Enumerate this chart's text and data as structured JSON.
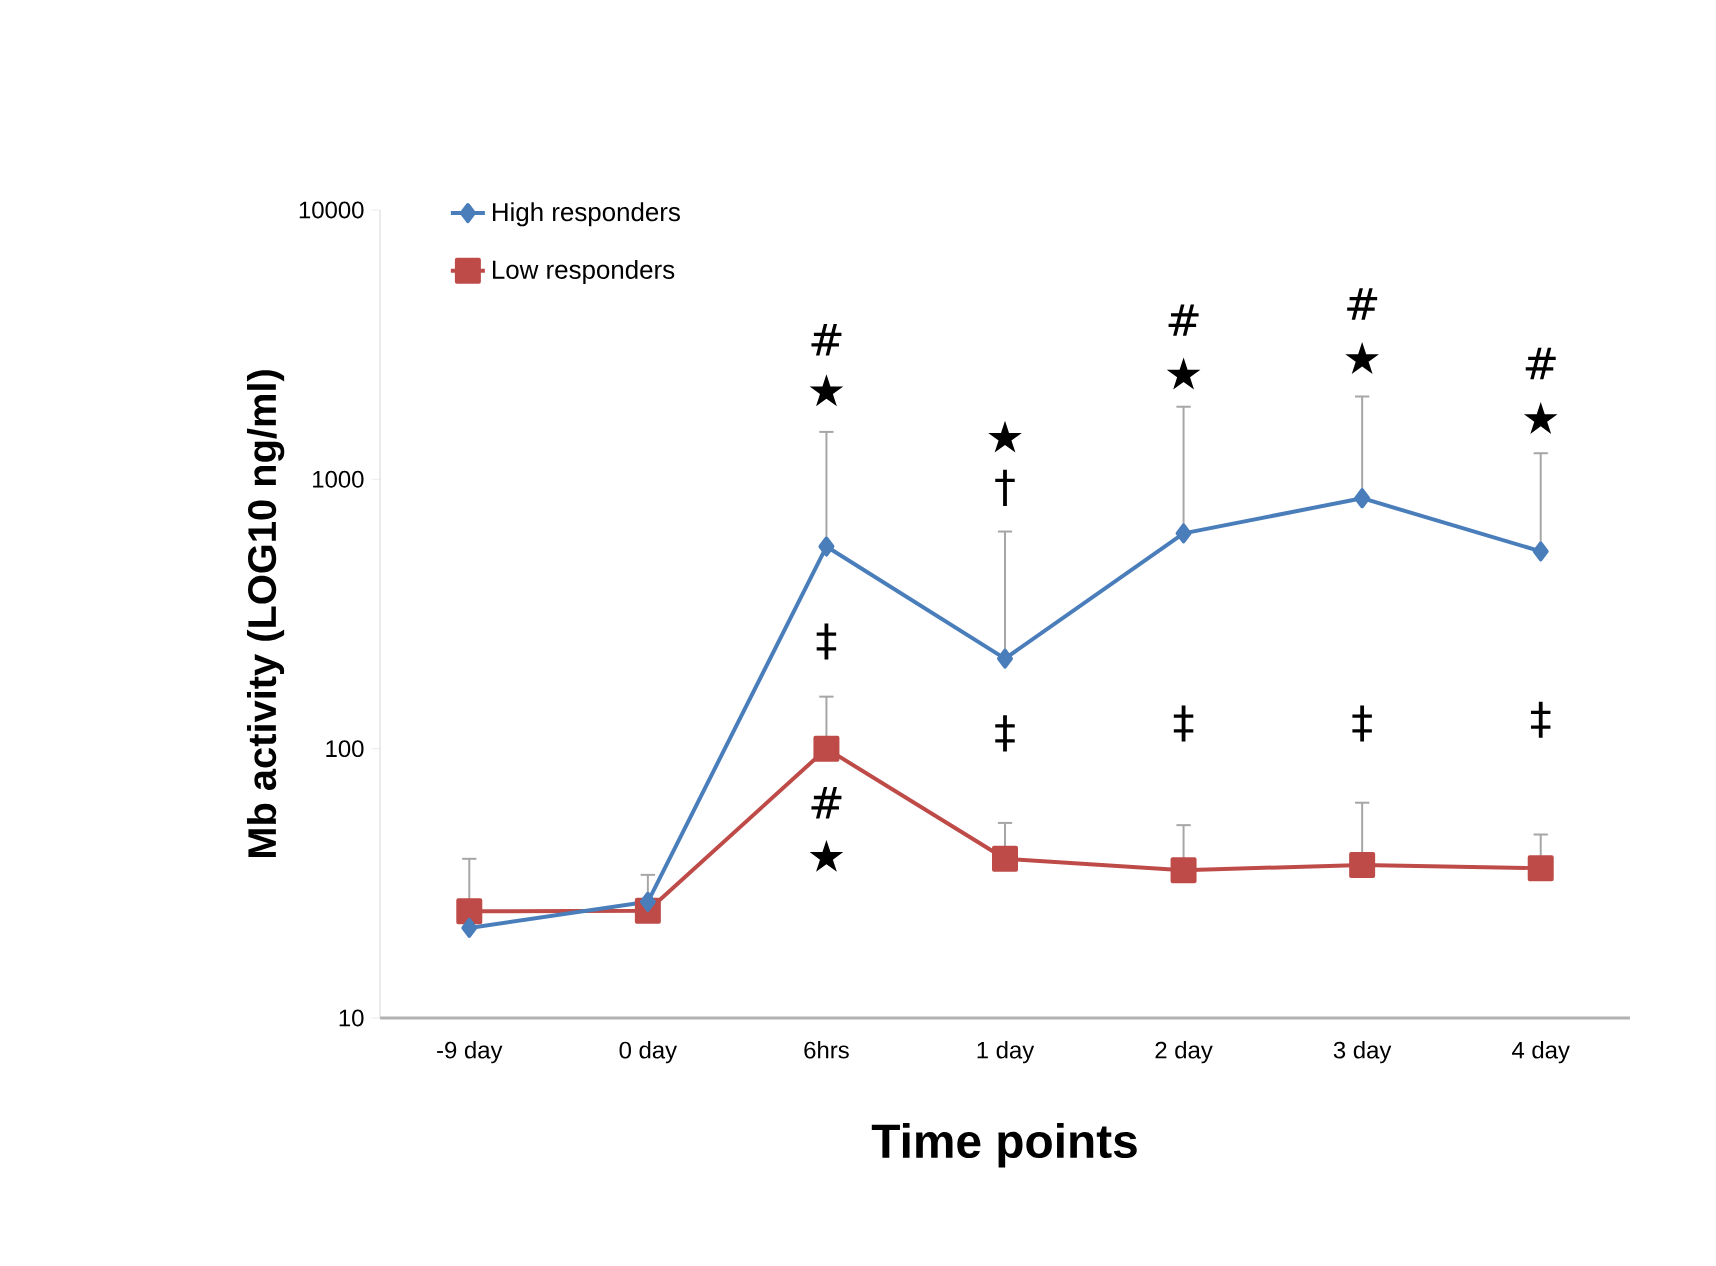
{
  "chart_data": {
    "type": "line",
    "xlabel": "Time points",
    "ylabel": "Mb activity (LOG10 ng/ml)",
    "categories": [
      "-9 day",
      "0 day",
      "6hrs",
      "1 day",
      "2 day",
      "3 day",
      "4 day"
    ],
    "series": [
      {
        "name": "High responders",
        "color": "#4a7ebb",
        "marker": "diamond",
        "values": [
          21.6,
          27,
          563,
          216,
          630,
          851,
          540
        ],
        "errors": [
          [
            21.6,
            39
          ],
          [
            27,
            34
          ],
          [
            563,
            1500
          ],
          [
            216,
            640
          ],
          [
            630,
            1860
          ],
          [
            851,
            2030
          ],
          [
            540,
            1250
          ]
        ]
      },
      {
        "name": "Low responders",
        "color": "#be4b48",
        "marker": "square",
        "values": [
          24.9,
          25,
          100,
          39,
          35.4,
          37,
          36
        ],
        "errors": [
          null,
          null,
          [
            100,
            156
          ],
          [
            39,
            53
          ],
          [
            35.4,
            52
          ],
          [
            37,
            63
          ],
          [
            36,
            48
          ]
        ]
      }
    ],
    "log": "y",
    "ylim": [
      10,
      10000
    ],
    "yticks": [
      10,
      100,
      1000,
      10000
    ],
    "legend": "top left",
    "grid": false,
    "annotations": [
      "#",
      "★",
      "‡",
      "#",
      "★",
      "★",
      "†",
      "‡",
      "#",
      "★",
      "‡",
      "#",
      "★",
      "‡",
      "#",
      "★",
      "‡"
    ]
  }
}
